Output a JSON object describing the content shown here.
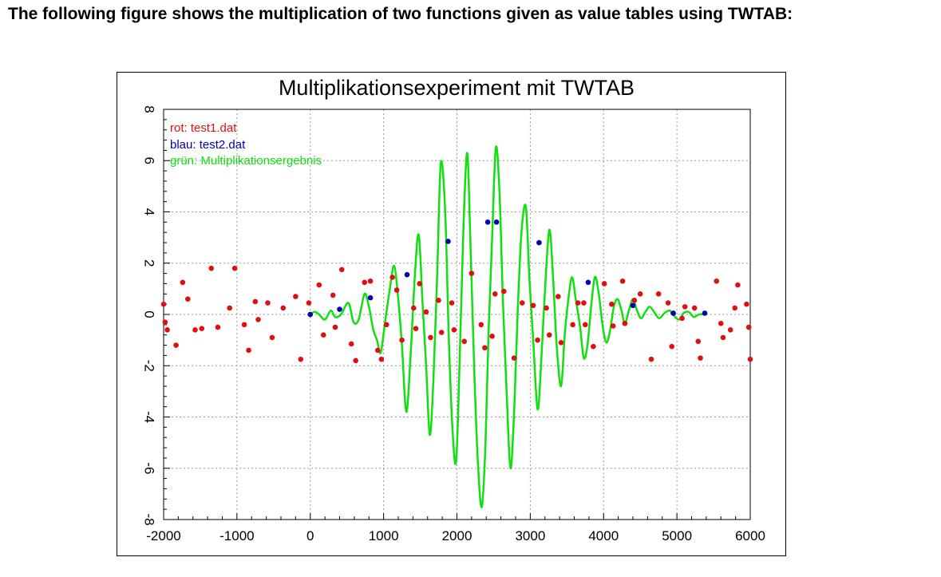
{
  "page": {
    "heading": "The following figure shows the multiplication of two functions given as value tables using TWTAB:"
  },
  "chart_data": {
    "type": "scatter",
    "title": "Multiplikationsexperiment mit TWTAB",
    "xlabel": "",
    "ylabel": "",
    "xlim": [
      -2000,
      6000
    ],
    "ylim": [
      -8,
      8
    ],
    "grid": true,
    "x_ticks": [
      -2000,
      -1000,
      0,
      1000,
      2000,
      3000,
      4000,
      5000,
      6000
    ],
    "x_tick_labels": [
      "-2000",
      "-1000",
      "0",
      "1000",
      "2000",
      "3000",
      "4000",
      "5000",
      "6000"
    ],
    "y_ticks": [
      -8,
      -6,
      -4,
      -2,
      0,
      2,
      4,
      6,
      8
    ],
    "y_tick_labels": [
      "-8",
      "-6",
      "-4",
      "-2",
      "0",
      "2",
      "4",
      "6",
      "8"
    ],
    "legend": {
      "placement": "top-left",
      "entries": [
        {
          "label": "rot: test1.dat",
          "color": "#e01010"
        },
        {
          "label": "blau: test2.dat",
          "color": "#0000b4"
        },
        {
          "label": "grün: Multiplikationsergebnis",
          "color": "#10e010"
        }
      ]
    },
    "series": [
      {
        "label": "rot: test1.dat",
        "kind": "points",
        "color": "#e01010",
        "x": [
          -2000,
          -1980,
          -1950,
          -1830,
          -1740,
          -1670,
          -1570,
          -1480,
          -1350,
          -1260,
          -1100,
          -1030,
          -900,
          -840,
          -750,
          -710,
          -580,
          -520,
          -370,
          -200,
          -130,
          -20,
          120,
          180,
          310,
          340,
          430,
          560,
          620,
          740,
          820,
          920,
          970,
          1040,
          1120,
          1180,
          1250,
          1410,
          1440,
          1490,
          1580,
          1640,
          1750,
          1790,
          1930,
          1960,
          2100,
          2200,
          2330,
          2380,
          2480,
          2520,
          2640,
          2780,
          2890,
          3040,
          3100,
          3220,
          3260,
          3380,
          3420,
          3580,
          3650,
          3730,
          3750,
          3860,
          4010,
          4110,
          4130,
          4260,
          4290,
          4420,
          4500,
          4650,
          4750,
          4880,
          4930,
          5070,
          5110,
          5240,
          5290,
          5320,
          5540,
          5600,
          5630,
          5730,
          5790,
          5830,
          5950,
          5980,
          6000
        ],
        "y": [
          0.4,
          -0.3,
          -0.6,
          -1.2,
          1.25,
          0.6,
          -0.6,
          -0.55,
          1.8,
          -0.5,
          0.25,
          1.8,
          -0.4,
          -1.4,
          0.5,
          -0.2,
          0.45,
          -0.9,
          0.25,
          0.7,
          -1.75,
          0.45,
          1.15,
          -0.8,
          0.75,
          -0.5,
          1.75,
          -1.15,
          -1.8,
          1.25,
          1.3,
          -1.4,
          -1.75,
          -0.4,
          1.45,
          0.95,
          -1.0,
          0.25,
          -0.55,
          1.2,
          0.1,
          -0.9,
          0.55,
          -0.7,
          0.45,
          -0.6,
          -1.05,
          1.6,
          -0.4,
          -1.3,
          -0.85,
          0.8,
          0.9,
          -1.7,
          0.45,
          0.35,
          -1.0,
          0.25,
          -0.8,
          0.7,
          -1.1,
          -0.4,
          0.45,
          0.45,
          -0.4,
          -1.25,
          1.2,
          0.4,
          -0.45,
          1.3,
          -0.35,
          0.55,
          0.8,
          -1.75,
          0.8,
          0.45,
          -1.25,
          -0.15,
          0.3,
          0.25,
          -1.05,
          -1.7,
          1.3,
          -0.35,
          -0.9,
          -0.6,
          0.25,
          1.15,
          0.4,
          -0.5,
          -1.75
        ]
      },
      {
        "label": "blau: test2.dat",
        "kind": "points",
        "color": "#0000b4",
        "x": [
          0,
          400,
          820,
          1320,
          1880,
          2420,
          2540,
          3120,
          3790,
          4400,
          4950,
          5380
        ],
        "y": [
          0.0,
          0.2,
          0.65,
          1.55,
          2.85,
          3.6,
          3.6,
          2.8,
          1.25,
          0.35,
          0.05,
          0.05
        ]
      },
      {
        "label": "grün: Multiplikationsergebnis",
        "kind": "line",
        "color": "#10e010",
        "x": [
          0,
          60,
          120,
          200,
          280,
          340,
          420,
          520,
          590,
          660,
          740,
          800,
          860,
          910,
          960,
          1020,
          1080,
          1140,
          1190,
          1250,
          1310,
          1370,
          1430,
          1480,
          1530,
          1580,
          1630,
          1680,
          1730,
          1780,
          1840,
          1890,
          1940,
          1990,
          2040,
          2090,
          2140,
          2180,
          2240,
          2290,
          2340,
          2390,
          2430,
          2480,
          2530,
          2580,
          2630,
          2680,
          2730,
          2780,
          2830,
          2880,
          2940,
          2990,
          3040,
          3100,
          3150,
          3200,
          3260,
          3310,
          3360,
          3420,
          3470,
          3520,
          3570,
          3620,
          3680,
          3730,
          3780,
          3830,
          3880,
          3930,
          3990,
          4040,
          4090,
          4140,
          4190,
          4240,
          4290,
          4340,
          4400,
          4450,
          4510,
          4570,
          4630,
          4700,
          4760,
          4830,
          4900,
          4960,
          5030,
          5090,
          5160,
          5230,
          5300,
          5380
        ],
        "y": [
          0.0,
          0.1,
          0.0,
          -0.2,
          0.15,
          -0.1,
          0.0,
          0.45,
          -0.3,
          -0.2,
          0.8,
          0.3,
          -0.6,
          -1.0,
          -1.5,
          -0.3,
          0.9,
          1.9,
          0.9,
          -1.2,
          -3.8,
          -1.5,
          1.7,
          3.1,
          0.5,
          -2.0,
          -4.7,
          -2.5,
          1.5,
          5.9,
          4.0,
          -1.0,
          -4.5,
          -5.7,
          -1.5,
          3.5,
          6.3,
          3.2,
          -2.5,
          -6.0,
          -7.5,
          -5.0,
          -0.8,
          3.0,
          6.5,
          4.8,
          0.3,
          -3.2,
          -6.0,
          -3.8,
          0.2,
          3.2,
          4.2,
          1.3,
          -1.0,
          -3.7,
          -1.8,
          0.9,
          3.3,
          1.5,
          -1.2,
          -2.8,
          -0.8,
          0.6,
          1.45,
          0.6,
          -0.5,
          -1.7,
          -1.2,
          0.3,
          1.45,
          0.9,
          -0.5,
          -1.1,
          -0.6,
          0.3,
          0.6,
          0.2,
          -0.35,
          0.1,
          0.6,
          0.2,
          -0.15,
          0.1,
          0.3,
          0.05,
          -0.15,
          0.05,
          0.15,
          -0.05,
          -0.2,
          0.05,
          0.1,
          -0.1,
          0.0,
          0.0
        ]
      }
    ]
  }
}
